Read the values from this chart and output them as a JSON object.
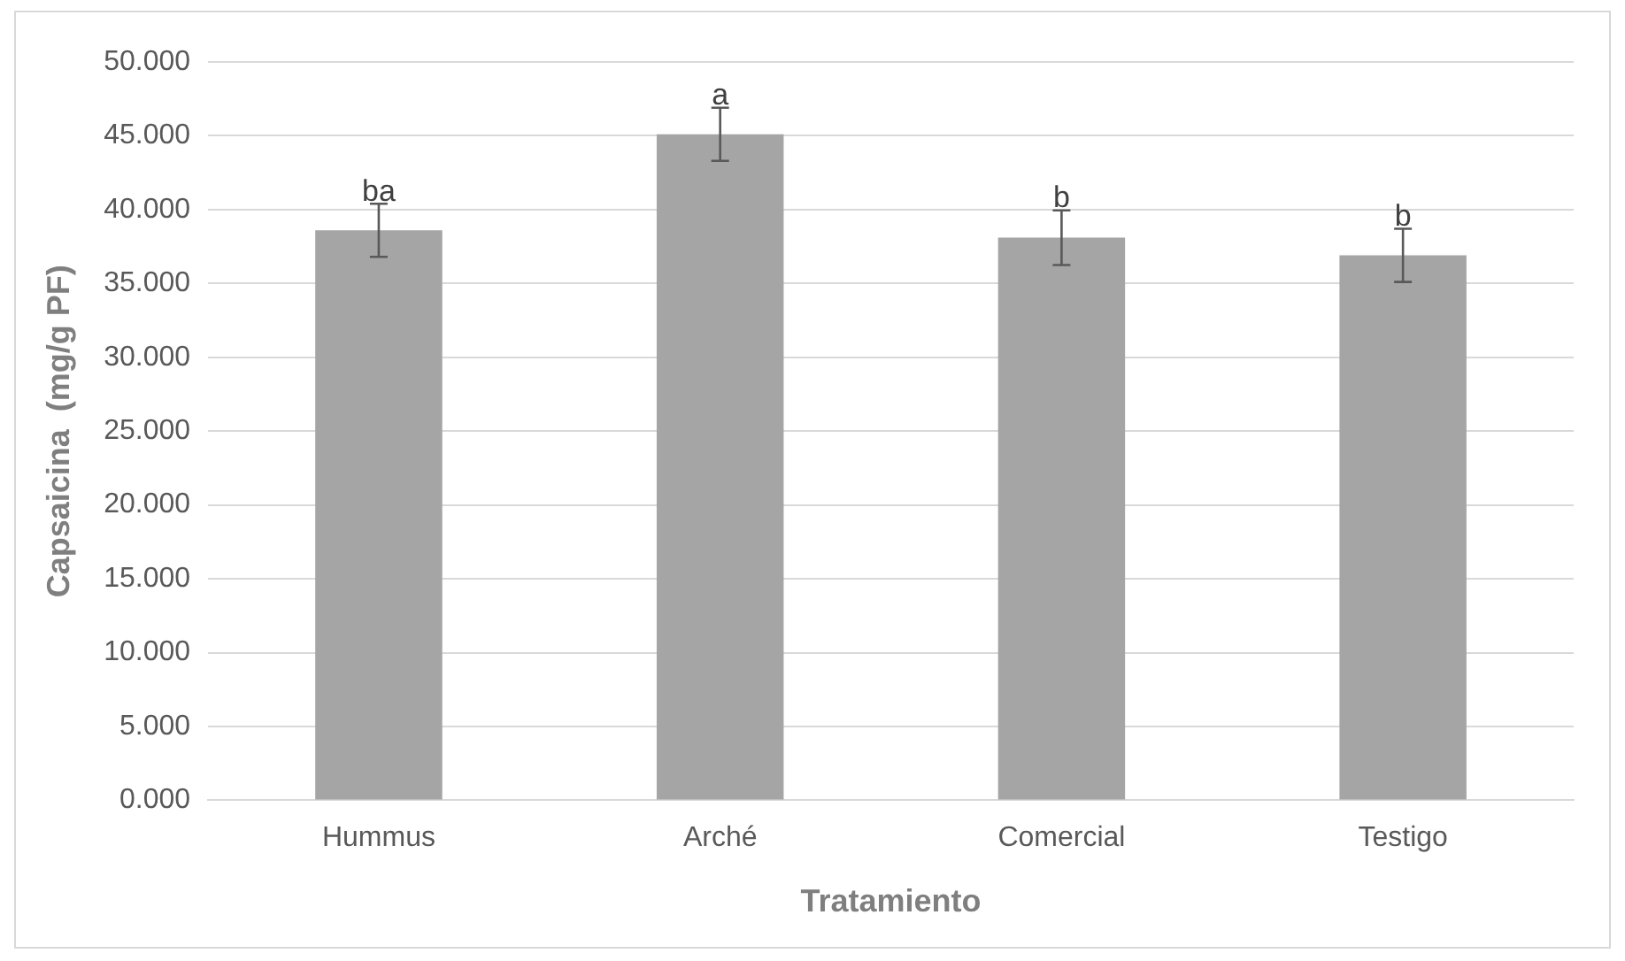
{
  "chart_data": {
    "type": "bar",
    "xlabel": "Tratamiento",
    "ylabel": "Capsaicina  (mg/g PF)",
    "categories": [
      "Hummus",
      "Arché",
      "Comercial",
      "Testigo"
    ],
    "values": [
      38.6,
      45.1,
      38.1,
      36.9
    ],
    "color": "#a5a5a5",
    "errors": [
      1.8,
      1.8,
      1.85,
      1.8
    ],
    "ylim": [
      0,
      50
    ],
    "yticks": [
      {
        "value": 0,
        "label": "0.000"
      },
      {
        "value": 5,
        "label": "5.000"
      },
      {
        "value": 10,
        "label": "10.000"
      },
      {
        "value": 15,
        "label": "15.000"
      },
      {
        "value": 20,
        "label": "20.000"
      },
      {
        "value": 25,
        "label": "25.000"
      },
      {
        "value": 30,
        "label": "30.000"
      },
      {
        "value": 35,
        "label": "35.000"
      },
      {
        "value": 40,
        "label": "40.000"
      },
      {
        "value": 45,
        "label": "45.000"
      },
      {
        "value": 50,
        "label": "50.000"
      }
    ],
    "grid": "y",
    "legend": false,
    "annotations": [
      {
        "text": "ba",
        "x": "Hummus",
        "y": 40.4
      },
      {
        "text": "a",
        "x": "Arché",
        "y": 46.9
      },
      {
        "text": "b",
        "x": "Comercial",
        "y": 39.95
      },
      {
        "text": "b",
        "x": "Testigo",
        "y": 38.7
      }
    ]
  }
}
